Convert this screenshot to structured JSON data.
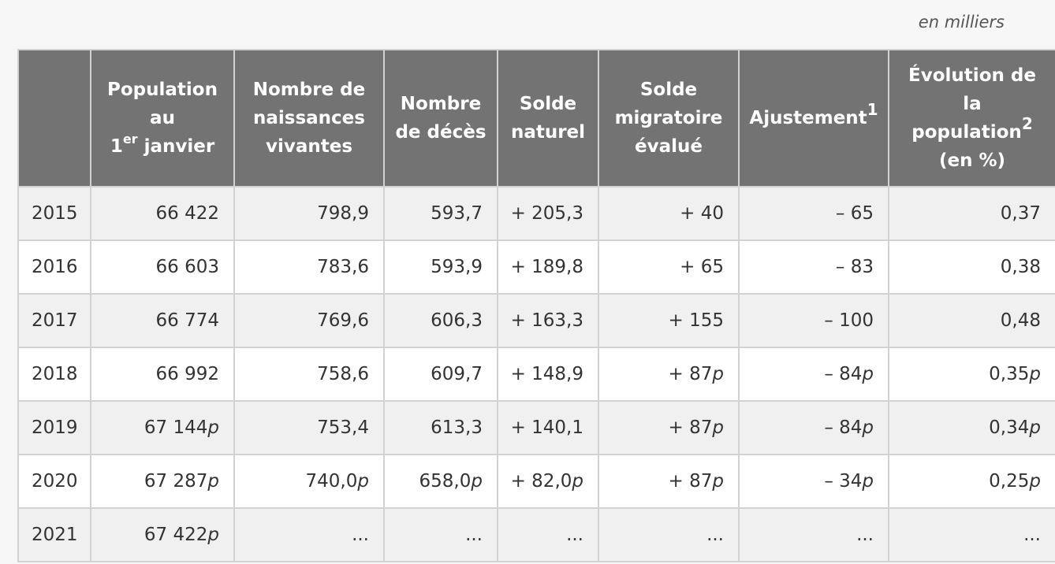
{
  "unit_note": "en milliers",
  "headers": {
    "year": "",
    "population_pre": "Population",
    "population_au": "au",
    "population_num": "1",
    "population_sup": "er",
    "population_post": " janvier",
    "naissances_1": "Nombre de",
    "naissances_2": "naissances",
    "naissances_3": "vivantes",
    "deces_1": "Nombre",
    "deces_2": "de décès",
    "solde_naturel_1": "Solde",
    "solde_naturel_2": "naturel",
    "solde_migratoire_1": "Solde",
    "solde_migratoire_2": "migratoire",
    "solde_migratoire_3": "évalué",
    "ajustement": "Ajustement",
    "ajustement_note": "1",
    "evolution_1": "Évolution de",
    "evolution_2": "la",
    "evolution_3": "population",
    "evolution_note": "2",
    "evolution_4": "(en %)"
  },
  "rows": [
    {
      "year": "2015",
      "population": "66 422",
      "population_flag": "",
      "naissances": "798,9",
      "naissances_flag": "",
      "deces": "593,7",
      "deces_flag": "",
      "solde_naturel": "+ 205,3",
      "solde_naturel_flag": "",
      "solde_migratoire": "+ 40",
      "solde_migratoire_flag": "",
      "ajustement": "– 65",
      "ajustement_flag": "",
      "evolution": "0,37",
      "evolution_flag": ""
    },
    {
      "year": "2016",
      "population": "66 603",
      "population_flag": "",
      "naissances": "783,6",
      "naissances_flag": "",
      "deces": "593,9",
      "deces_flag": "",
      "solde_naturel": "+ 189,8",
      "solde_naturel_flag": "",
      "solde_migratoire": "+ 65",
      "solde_migratoire_flag": "",
      "ajustement": "– 83",
      "ajustement_flag": "",
      "evolution": "0,38",
      "evolution_flag": ""
    },
    {
      "year": "2017",
      "population": "66 774",
      "population_flag": "",
      "naissances": "769,6",
      "naissances_flag": "",
      "deces": "606,3",
      "deces_flag": "",
      "solde_naturel": "+ 163,3",
      "solde_naturel_flag": "",
      "solde_migratoire": "+ 155",
      "solde_migratoire_flag": "",
      "ajustement": "– 100",
      "ajustement_flag": "",
      "evolution": "0,48",
      "evolution_flag": ""
    },
    {
      "year": "2018",
      "population": "66 992",
      "population_flag": "",
      "naissances": "758,6",
      "naissances_flag": "",
      "deces": "609,7",
      "deces_flag": "",
      "solde_naturel": "+ 148,9",
      "solde_naturel_flag": "",
      "solde_migratoire": "+ 87",
      "solde_migratoire_flag": "p",
      "ajustement": "– 84",
      "ajustement_flag": "p",
      "evolution": "0,35",
      "evolution_flag": "p"
    },
    {
      "year": "2019",
      "population": "67 144",
      "population_flag": "p",
      "naissances": "753,4",
      "naissances_flag": "",
      "deces": "613,3",
      "deces_flag": "",
      "solde_naturel": "+ 140,1",
      "solde_naturel_flag": "",
      "solde_migratoire": "+ 87",
      "solde_migratoire_flag": "p",
      "ajustement": "– 84",
      "ajustement_flag": "p",
      "evolution": "0,34",
      "evolution_flag": "p"
    },
    {
      "year": "2020",
      "population": "67 287",
      "population_flag": "p",
      "naissances": "740,0",
      "naissances_flag": "p",
      "deces": "658,0",
      "deces_flag": "p",
      "solde_naturel": "+ 82,0",
      "solde_naturel_flag": "p",
      "solde_migratoire": "+ 87",
      "solde_migratoire_flag": "p",
      "ajustement": "– 34",
      "ajustement_flag": "p",
      "evolution": "0,25",
      "evolution_flag": "p"
    },
    {
      "year": "2021",
      "population": "67 422",
      "population_flag": "p",
      "naissances": "...",
      "naissances_flag": "",
      "deces": "...",
      "deces_flag": "",
      "solde_naturel": "...",
      "solde_naturel_flag": "",
      "solde_migratoire": "...",
      "solde_migratoire_flag": "",
      "ajustement": "...",
      "ajustement_flag": "",
      "evolution": "...",
      "evolution_flag": ""
    }
  ]
}
